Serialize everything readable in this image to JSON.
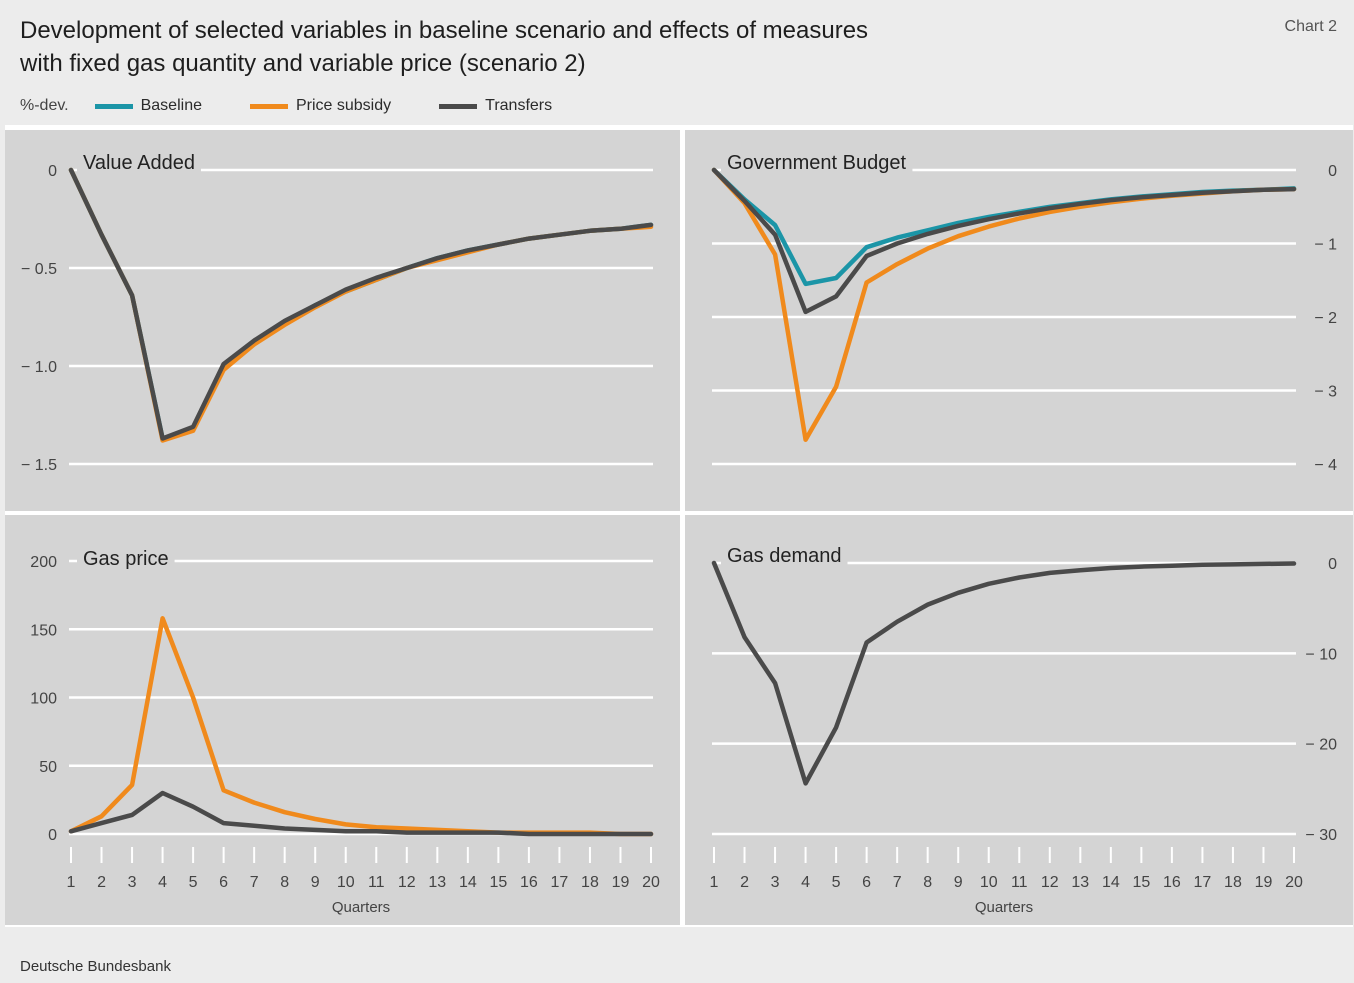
{
  "title_line1": "Development of selected variables in baseline scenario and effects of measures",
  "title_line2": "with fixed gas quantity and variable price (scenario 2)",
  "chart_label": "Chart 2",
  "unit_label": "%-dev.",
  "legend": [
    {
      "name": "Baseline",
      "color": "#1b95a7"
    },
    {
      "name": "Price subsidy",
      "color": "#f08a1c"
    },
    {
      "name": "Transfers",
      "color": "#4a4a4a"
    }
  ],
  "source": "Deutsche Bundesbank",
  "chart_data": [
    {
      "type": "line",
      "title": "Value Added",
      "xlabel": "",
      "x": [
        1,
        2,
        3,
        4,
        5,
        6,
        7,
        8,
        9,
        10,
        11,
        12,
        13,
        14,
        15,
        16,
        17,
        18,
        19,
        20
      ],
      "ylim": [
        -1.6,
        0
      ],
      "yticks": [
        0,
        -0.5,
        -1.0,
        -1.5
      ],
      "ytick_labels": [
        "0",
        "− 0.5",
        "− 1.0",
        "− 1.5"
      ],
      "axis_side": "left",
      "series": [
        {
          "name": "Baseline",
          "values": [
            0,
            -0.33,
            -0.64,
            -1.37,
            -1.32,
            -1.0,
            -0.88,
            -0.78,
            -0.69,
            -0.62,
            -0.56,
            -0.5,
            -0.45,
            -0.41,
            -0.38,
            -0.35,
            -0.33,
            -0.31,
            -0.3,
            -0.28
          ]
        },
        {
          "name": "Price subsidy",
          "values": [
            0,
            -0.33,
            -0.64,
            -1.38,
            -1.33,
            -1.02,
            -0.89,
            -0.79,
            -0.7,
            -0.62,
            -0.56,
            -0.5,
            -0.46,
            -0.42,
            -0.38,
            -0.35,
            -0.33,
            -0.31,
            -0.3,
            -0.29
          ]
        },
        {
          "name": "Transfers",
          "values": [
            0,
            -0.33,
            -0.64,
            -1.37,
            -1.31,
            -0.99,
            -0.87,
            -0.77,
            -0.69,
            -0.61,
            -0.55,
            -0.5,
            -0.45,
            -0.41,
            -0.38,
            -0.35,
            -0.33,
            -0.31,
            -0.3,
            -0.28
          ]
        }
      ]
    },
    {
      "type": "line",
      "title": "Government Budget",
      "xlabel": "",
      "x": [
        1,
        2,
        3,
        4,
        5,
        6,
        7,
        8,
        9,
        10,
        11,
        12,
        13,
        14,
        15,
        16,
        17,
        18,
        19,
        20
      ],
      "ylim": [
        -4.15,
        0
      ],
      "yticks": [
        0,
        -1,
        -2,
        -3,
        -4
      ],
      "ytick_labels": [
        "0",
        "− 1",
        "− 2",
        "− 3",
        "− 4"
      ],
      "axis_side": "right",
      "series": [
        {
          "name": "Baseline",
          "values": [
            0,
            -0.4,
            -0.75,
            -1.55,
            -1.47,
            -1.05,
            -0.92,
            -0.82,
            -0.72,
            -0.64,
            -0.57,
            -0.5,
            -0.45,
            -0.4,
            -0.36,
            -0.33,
            -0.3,
            -0.28,
            -0.27,
            -0.25
          ]
        },
        {
          "name": "Price subsidy",
          "values": [
            0,
            -0.45,
            -1.15,
            -3.67,
            -2.95,
            -1.53,
            -1.28,
            -1.07,
            -0.9,
            -0.77,
            -0.66,
            -0.57,
            -0.5,
            -0.44,
            -0.39,
            -0.35,
            -0.32,
            -0.29,
            -0.27,
            -0.26
          ]
        },
        {
          "name": "Transfers",
          "values": [
            0,
            -0.42,
            -0.88,
            -1.93,
            -1.72,
            -1.17,
            -1.0,
            -0.87,
            -0.76,
            -0.67,
            -0.59,
            -0.52,
            -0.46,
            -0.41,
            -0.37,
            -0.34,
            -0.31,
            -0.29,
            -0.27,
            -0.26
          ]
        }
      ]
    },
    {
      "type": "line",
      "title": "Gas price",
      "xlabel": "Quarters",
      "x": [
        1,
        2,
        3,
        4,
        5,
        6,
        7,
        8,
        9,
        10,
        11,
        12,
        13,
        14,
        15,
        16,
        17,
        18,
        19,
        20
      ],
      "ylim": [
        0,
        215
      ],
      "yticks": [
        200,
        150,
        100,
        50,
        0
      ],
      "ytick_labels": [
        "200",
        "150",
        "100",
        "50",
        "0"
      ],
      "axis_side": "left",
      "series": [
        {
          "name": "Price subsidy",
          "values": [
            2,
            13,
            36,
            158,
            100,
            32,
            23,
            16,
            11,
            7,
            5,
            4,
            3,
            2,
            1,
            1,
            1,
            1,
            0,
            0
          ]
        },
        {
          "name": "Transfers",
          "values": [
            2,
            8,
            14,
            30,
            20,
            8,
            6,
            4,
            3,
            2,
            2,
            1,
            1,
            1,
            1,
            0,
            0,
            0,
            0,
            0
          ]
        }
      ]
    },
    {
      "type": "line",
      "title": "Gas demand",
      "xlabel": "Quarters",
      "x": [
        1,
        2,
        3,
        4,
        5,
        6,
        7,
        8,
        9,
        10,
        11,
        12,
        13,
        14,
        15,
        16,
        17,
        18,
        19,
        20
      ],
      "ylim": [
        -30,
        1.5
      ],
      "yticks": [
        0,
        -10,
        -20,
        -30
      ],
      "ytick_labels": [
        "0",
        "− 10",
        "− 20",
        "− 30"
      ],
      "axis_side": "right",
      "series": [
        {
          "name": "Transfers",
          "values": [
            0,
            -8.2,
            -13.3,
            -24.4,
            -18.2,
            -8.8,
            -6.5,
            -4.6,
            -3.3,
            -2.3,
            -1.6,
            -1.1,
            -0.8,
            -0.55,
            -0.4,
            -0.3,
            -0.2,
            -0.15,
            -0.1,
            -0.05
          ]
        }
      ]
    }
  ]
}
